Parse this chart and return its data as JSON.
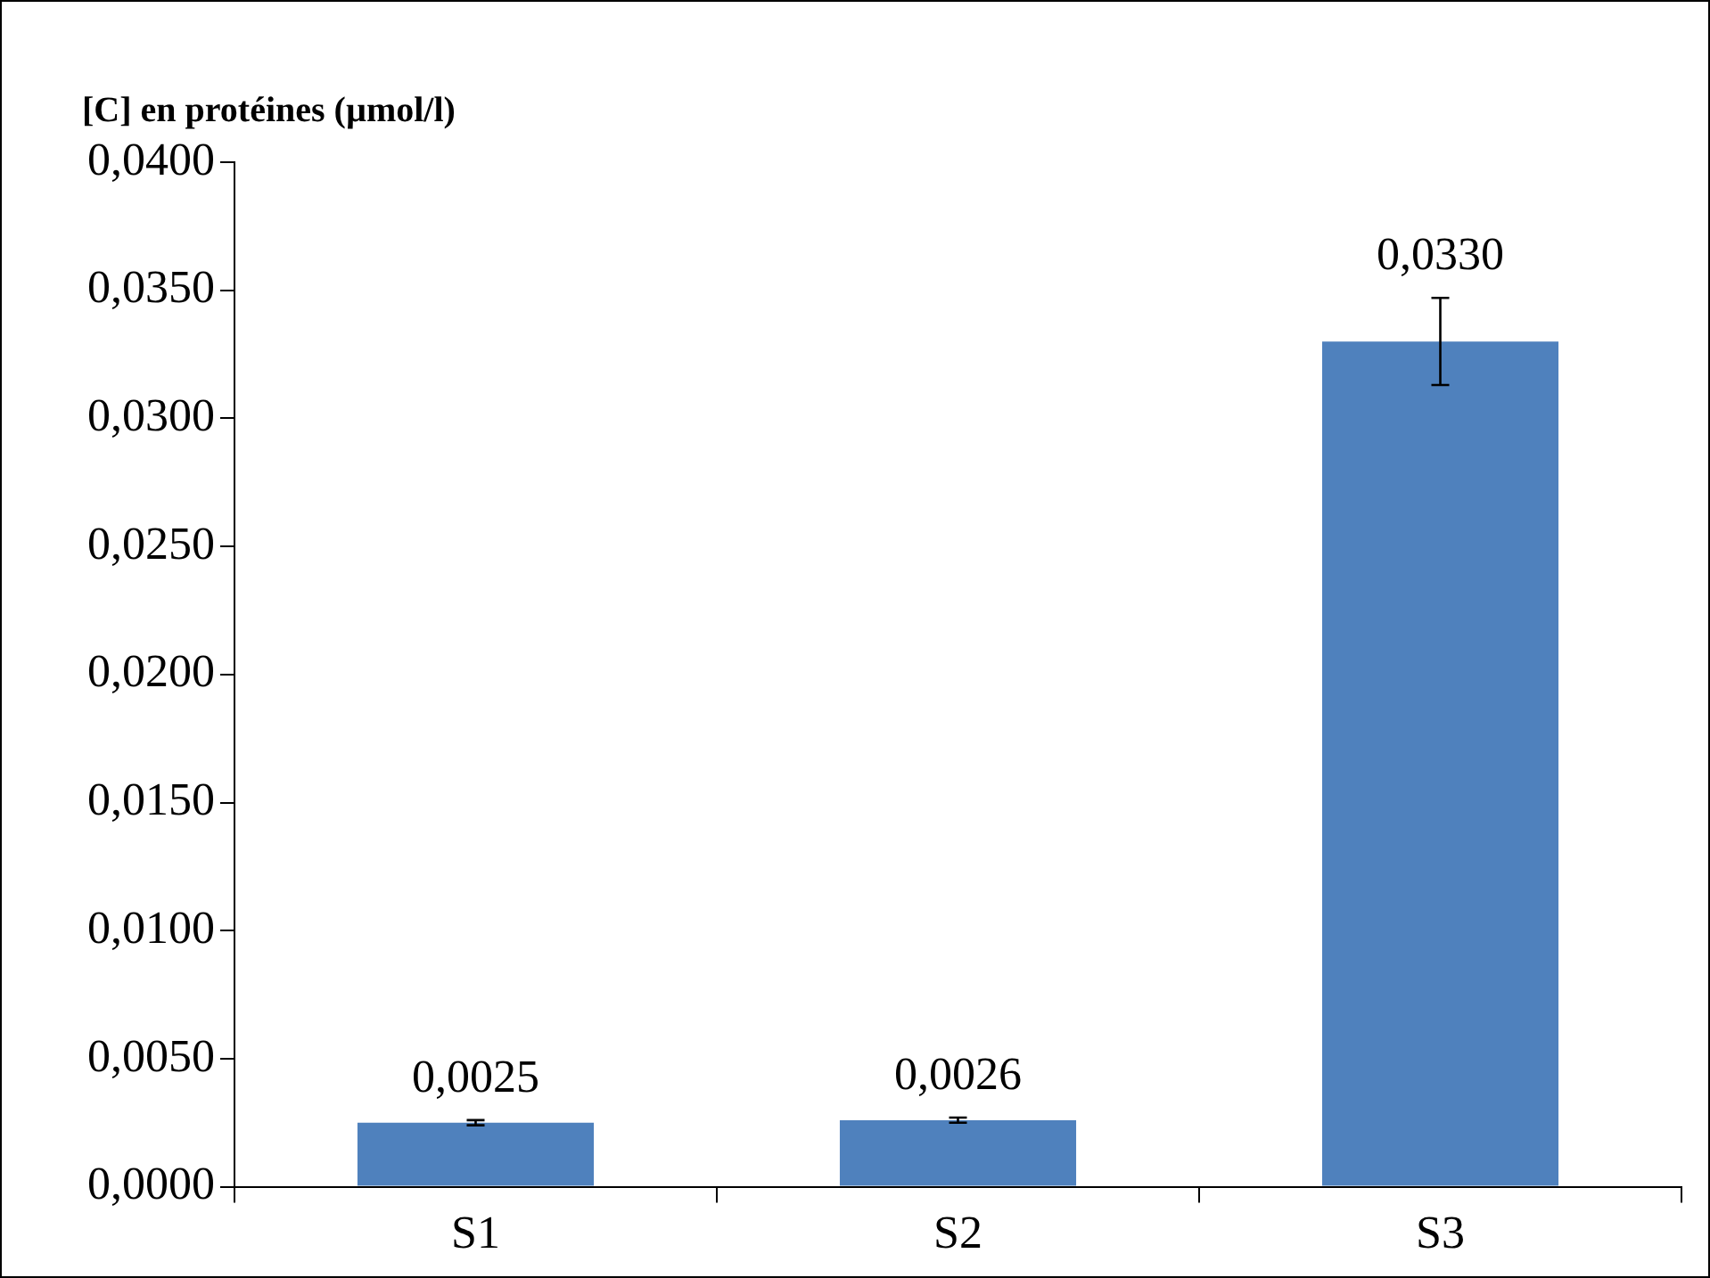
{
  "chart_data": {
    "type": "bar",
    "title": "[C] en protéines (µmol/l)",
    "categories": [
      "S1",
      "S2",
      "S3"
    ],
    "values": [
      0.0025,
      0.0026,
      0.033
    ],
    "errors": [
      0.0001,
      0.0001,
      0.0017
    ],
    "value_labels": [
      "0,0025",
      "0,0026",
      "0,0330"
    ],
    "color": "#4f81bd",
    "ylim": [
      0,
      0.04
    ],
    "yticks": [
      {
        "value": 0,
        "label": "0,0000"
      },
      {
        "value": 0.005,
        "label": "0,0050"
      },
      {
        "value": 0.01,
        "label": "0,0100"
      },
      {
        "value": 0.015,
        "label": "0,0150"
      },
      {
        "value": 0.02,
        "label": "0,0200"
      },
      {
        "value": 0.025,
        "label": "0,0250"
      },
      {
        "value": 0.03,
        "label": "0,0300"
      },
      {
        "value": 0.035,
        "label": "0,0350"
      },
      {
        "value": 0.04,
        "label": "0,0400"
      }
    ],
    "grid": false,
    "legend": false
  }
}
